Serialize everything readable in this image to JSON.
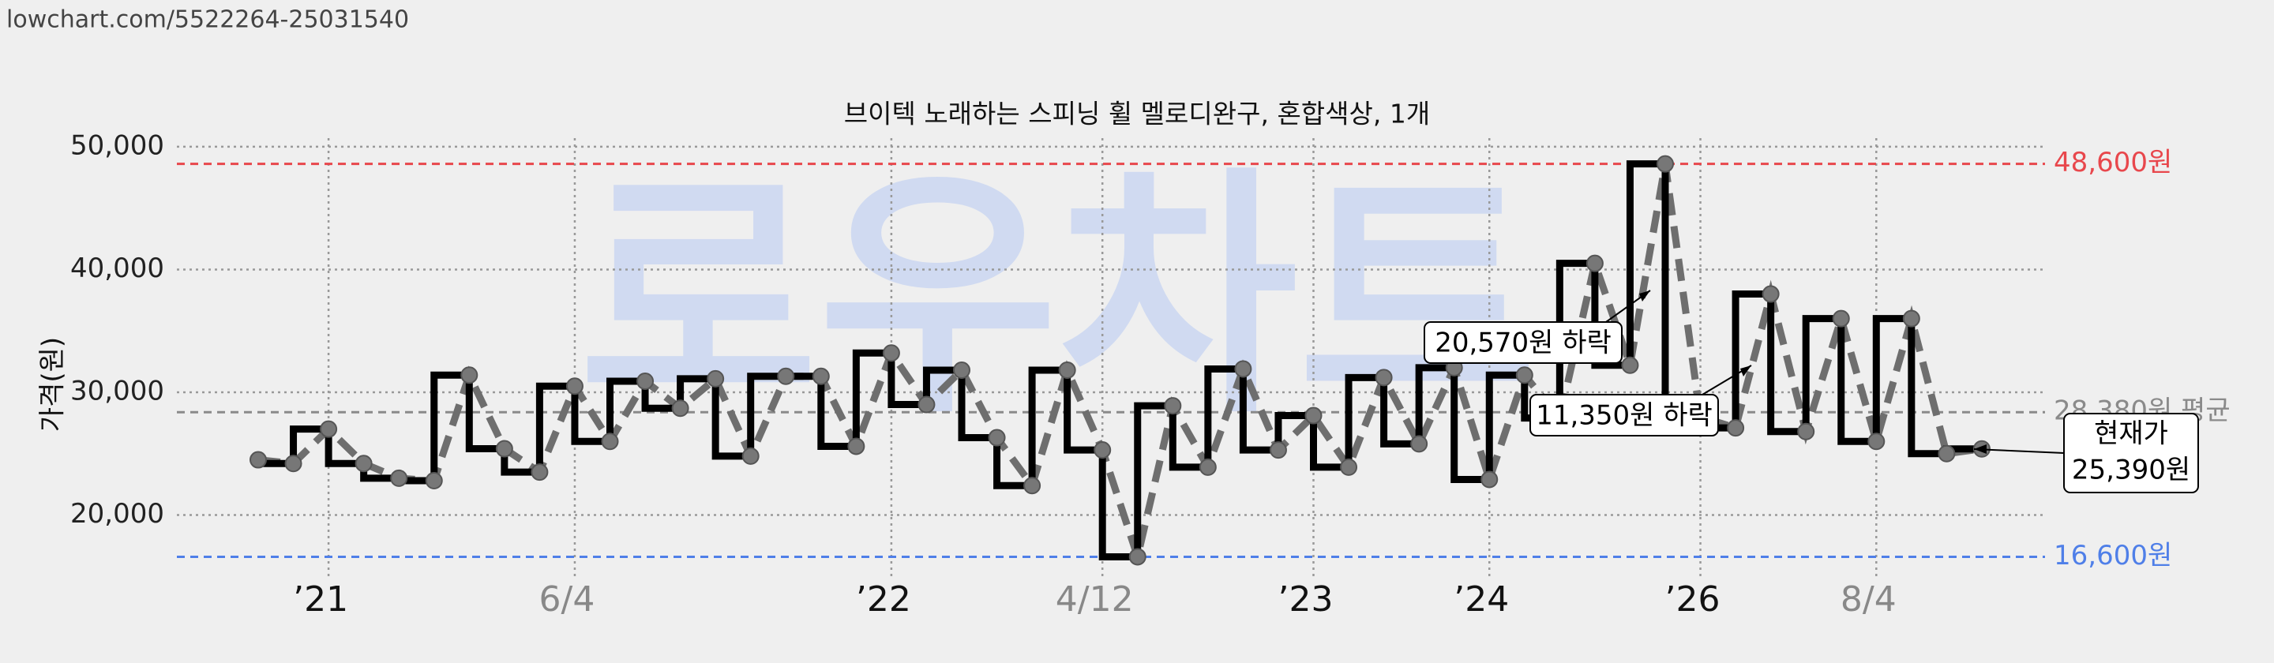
{
  "url": "lowchart.com/5522264-25031540",
  "chart_data": {
    "type": "step",
    "title": "브이텍 노래하는 스피닝 휠 멜로디완구, 혼합색상, 1개",
    "y_label": "가격(원)",
    "watermark": "로우차트",
    "categories": [
      null,
      null,
      "’21",
      null,
      null,
      null,
      null,
      null,
      null,
      "6/4",
      null,
      null,
      null,
      null,
      null,
      null,
      null,
      null,
      "’22",
      null,
      null,
      null,
      null,
      null,
      "4/12",
      null,
      null,
      null,
      null,
      null,
      "’23",
      null,
      null,
      null,
      null,
      "’24",
      null,
      null,
      null,
      null,
      null,
      "’26",
      null,
      null,
      null,
      null,
      "8/4",
      null,
      null,
      null
    ],
    "values": [
      24500,
      24200,
      27000,
      24200,
      23000,
      22800,
      31400,
      25400,
      23500,
      30500,
      26000,
      30900,
      28700,
      31100,
      24800,
      31300,
      31300,
      25600,
      33200,
      29000,
      31800,
      26300,
      22400,
      31800,
      25300,
      16600,
      28900,
      23900,
      31900,
      25300,
      28100,
      23900,
      31200,
      25800,
      32000,
      22900,
      31400,
      27900,
      40500,
      32200,
      48600,
      28000,
      27100,
      38000,
      26800,
      36000,
      26000,
      36000,
      25000,
      25390
    ],
    "step_color": "#000000",
    "line_color": "#6e6e6e",
    "ylim": [
      14700,
      50700
    ],
    "yticks": [
      {
        "value": 20000,
        "label": "20,000"
      },
      {
        "value": 30000,
        "label": "30,000"
      },
      {
        "value": 40000,
        "label": "40,000"
      },
      {
        "value": 50000,
        "label": "50,000"
      }
    ],
    "grid": true,
    "ref_lines": [
      {
        "value": 48600,
        "label": "48,600원",
        "color": "#e8474c"
      },
      {
        "value": 28380,
        "label": "28,380원 평균",
        "color": "#8a8a8a"
      },
      {
        "value": 16600,
        "label": "16,600원",
        "color": "#4f7fe8"
      }
    ],
    "annotations": [
      {
        "text": "20,570원 하락"
      },
      {
        "text": "11,350원 하락"
      },
      {
        "lines": [
          "현재가",
          "25,390원"
        ]
      }
    ]
  }
}
